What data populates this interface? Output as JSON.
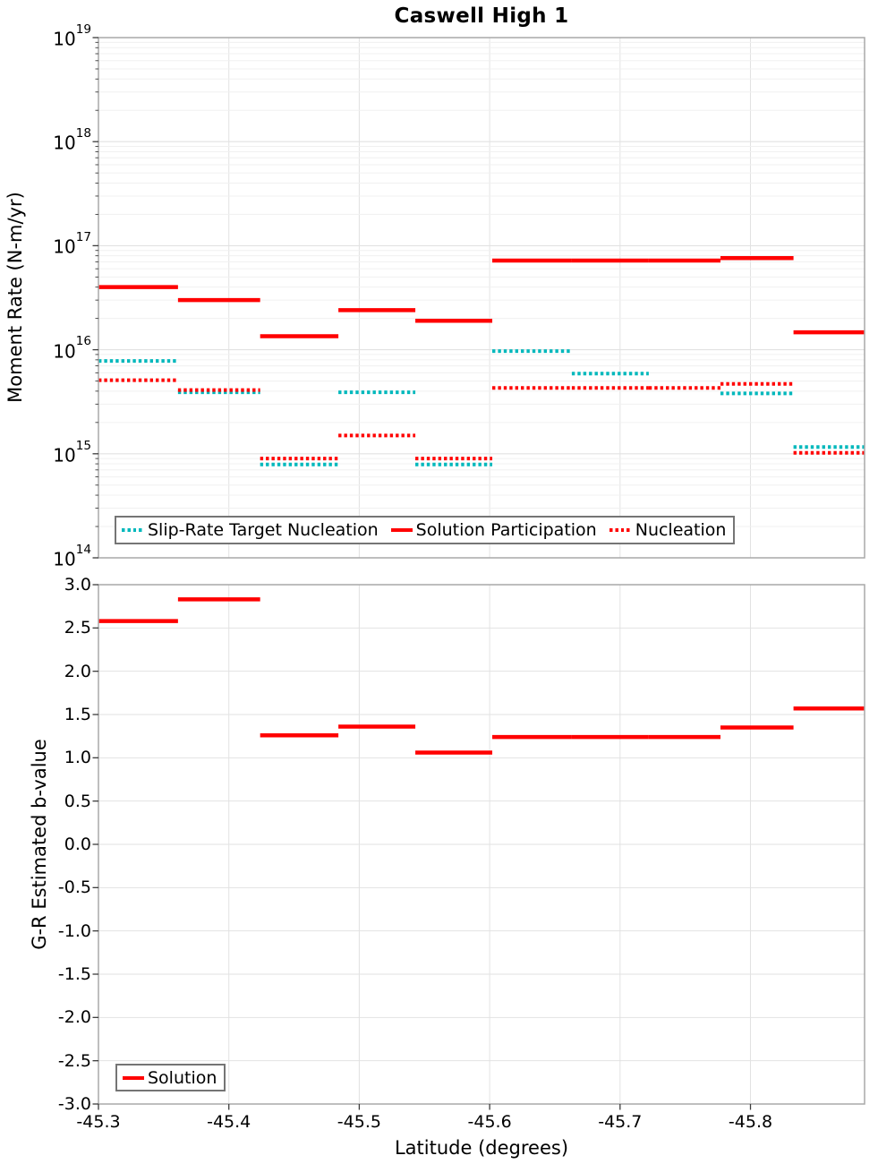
{
  "title": "Caswell High 1",
  "colors": {
    "solution_red": "#ff0000",
    "slip_rate_teal": "#00b8bc",
    "grid_major": "#e2e2e2",
    "grid_minor": "#f0f0f0",
    "frame": "#a8a8a8",
    "tick": "#3c3c3c",
    "legend_border": "#757575",
    "text": "#000000"
  },
  "chart_data": [
    {
      "type": "line",
      "panel": "top",
      "title": "Caswell High 1",
      "ylabel": "Moment Rate (N-m/yr)",
      "yscale": "log",
      "ylim": [
        100000000000000.0,
        1e+19
      ],
      "ytick_exponents": [
        19,
        18,
        17,
        16,
        15,
        14
      ],
      "xlim": [
        -45.3,
        -45.8875
      ],
      "xticks": [
        "-45.3",
        "-45.4",
        "-45.5",
        "-45.6",
        "-45.7",
        "-45.8"
      ],
      "grid": true,
      "legend_position": "lower left",
      "series": [
        {
          "name": "Slip-Rate Target Nucleation",
          "color": "#00b8bc",
          "style": "dotted",
          "segments": [
            [
              -45.3,
              -45.361,
              7800000000000000.0
            ],
            [
              -45.361,
              -45.424,
              3900000000000000.0
            ],
            [
              -45.424,
              -45.484,
              790000000000000.0
            ],
            [
              -45.484,
              -45.543,
              3900000000000000.0
            ],
            [
              -45.543,
              -45.602,
              790000000000000.0
            ],
            [
              -45.602,
              -45.663,
              9700000000000000.0
            ],
            [
              -45.663,
              -45.722,
              5900000000000000.0
            ],
            [
              -45.777,
              -45.833,
              3800000000000000.0
            ],
            [
              -45.833,
              -45.8875,
              1160000000000000.0
            ]
          ]
        },
        {
          "name": "Solution Participation",
          "color": "#ff0000",
          "style": "solid",
          "segments": [
            [
              -45.3,
              -45.361,
              4e+16
            ],
            [
              -45.361,
              -45.424,
              3e+16
            ],
            [
              -45.424,
              -45.484,
              1.35e+16
            ],
            [
              -45.484,
              -45.543,
              2.4e+16
            ],
            [
              -45.543,
              -45.602,
              1.9e+16
            ],
            [
              -45.602,
              -45.663,
              7.2e+16
            ],
            [
              -45.663,
              -45.722,
              7.2e+16
            ],
            [
              -45.722,
              -45.777,
              7.2e+16
            ],
            [
              -45.777,
              -45.833,
              7.6e+16
            ],
            [
              -45.833,
              -45.8875,
              1.47e+16
            ]
          ]
        },
        {
          "name": "Nucleation",
          "color": "#ff0000",
          "style": "dotted",
          "segments": [
            [
              -45.3,
              -45.361,
              5100000000000000.0
            ],
            [
              -45.361,
              -45.424,
              4100000000000000.0
            ],
            [
              -45.424,
              -45.484,
              900000000000000.0
            ],
            [
              -45.484,
              -45.543,
              1500000000000000.0
            ],
            [
              -45.543,
              -45.602,
              900000000000000.0
            ],
            [
              -45.602,
              -45.663,
              4300000000000000.0
            ],
            [
              -45.663,
              -45.722,
              4300000000000000.0
            ],
            [
              -45.722,
              -45.777,
              4300000000000000.0
            ],
            [
              -45.777,
              -45.833,
              4700000000000000.0
            ],
            [
              -45.833,
              -45.8875,
              1020000000000000.0
            ]
          ]
        }
      ]
    },
    {
      "type": "line",
      "panel": "bottom",
      "ylabel": "G-R Estimated b-value",
      "xlabel": "Latitude (degrees)",
      "ylim": [
        -3.0,
        3.0
      ],
      "yticks": [
        "3.0",
        "2.5",
        "2.0",
        "1.5",
        "1.0",
        "0.5",
        "0.0",
        "-0.5",
        "-1.0",
        "-1.5",
        "-2.0",
        "-2.5",
        "-3.0"
      ],
      "xlim": [
        -45.3,
        -45.8875
      ],
      "xticks": [
        "-45.3",
        "-45.4",
        "-45.5",
        "-45.6",
        "-45.7",
        "-45.8"
      ],
      "grid": true,
      "legend_position": "lower left",
      "series": [
        {
          "name": "Solution",
          "color": "#ff0000",
          "style": "solid",
          "segments": [
            [
              -45.3,
              -45.361,
              2.58
            ],
            [
              -45.361,
              -45.424,
              2.83
            ],
            [
              -45.424,
              -45.484,
              1.26
            ],
            [
              -45.484,
              -45.543,
              1.36
            ],
            [
              -45.543,
              -45.602,
              1.06
            ],
            [
              -45.602,
              -45.663,
              1.24
            ],
            [
              -45.663,
              -45.722,
              1.24
            ],
            [
              -45.722,
              -45.777,
              1.24
            ],
            [
              -45.777,
              -45.833,
              1.35
            ],
            [
              -45.833,
              -45.8875,
              1.57
            ]
          ]
        }
      ]
    }
  ]
}
